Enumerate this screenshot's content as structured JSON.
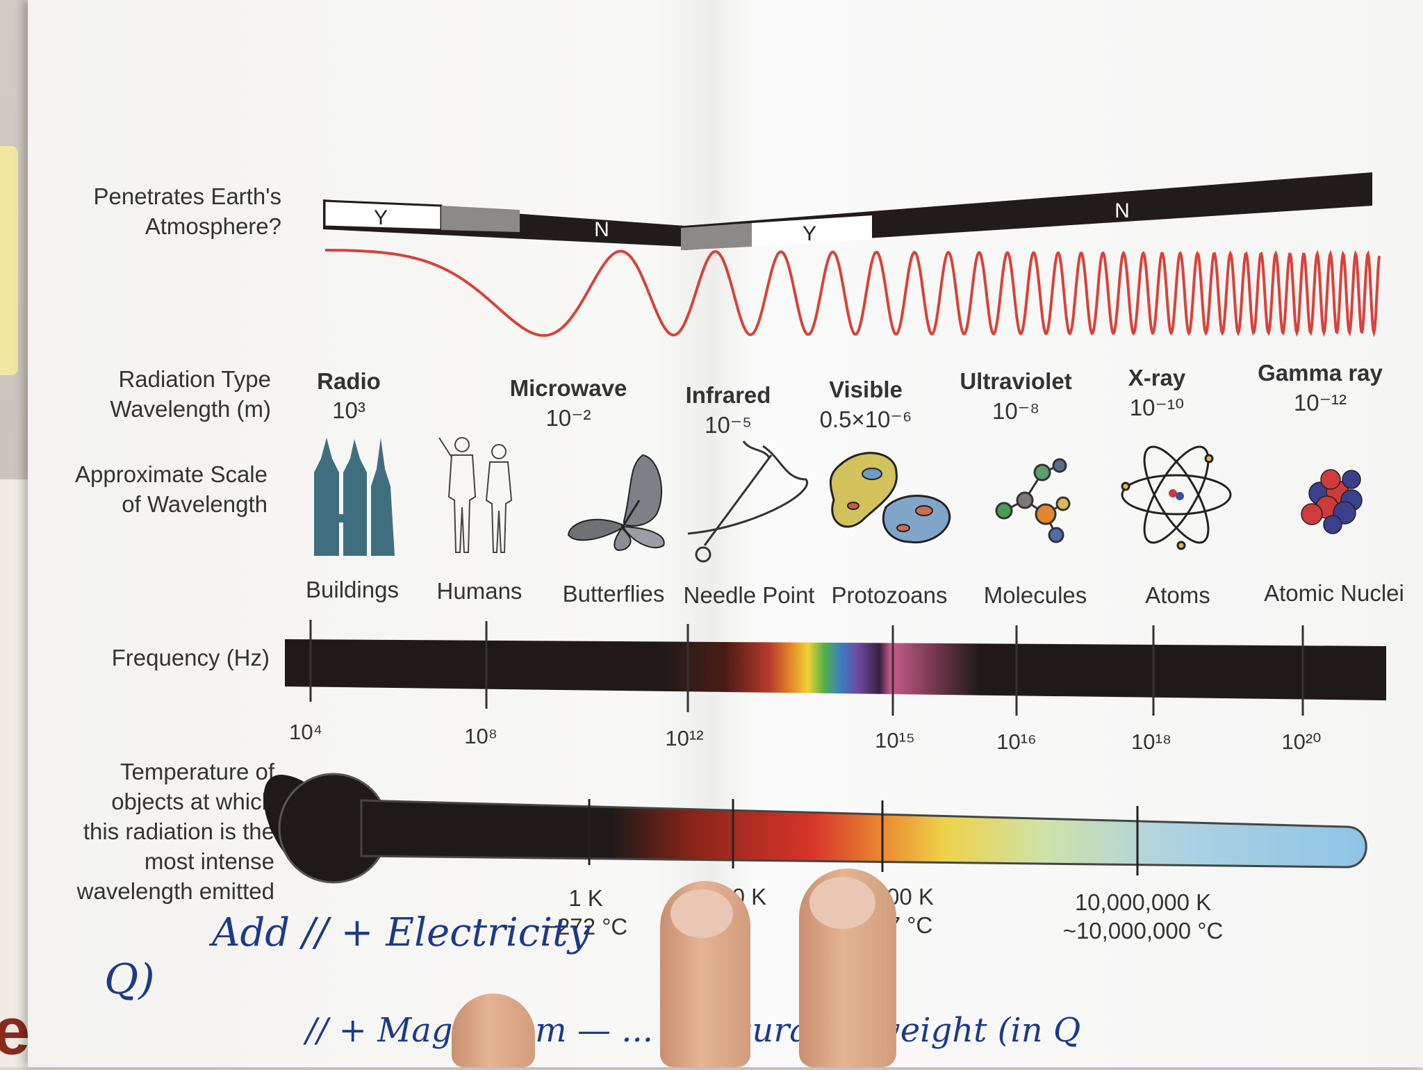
{
  "labels": {
    "penetrates": [
      "Penetrates Earth's",
      "Atmosphere?"
    ],
    "radiation_type": "Radiation Type",
    "wavelength": "Wavelength (m)",
    "scale": [
      "Approximate Scale",
      "of Wavelength"
    ],
    "frequency": "Frequency (Hz)",
    "temperature": [
      "Temperature of",
      "objects at which",
      "this radiation is the",
      "most intense",
      "wavelength emitted"
    ]
  },
  "atmosphere": {
    "y_left": "Y",
    "n_left": "N",
    "y_mid": "Y",
    "n_right": "N"
  },
  "radiation_types": [
    {
      "name": "Radio",
      "wl": "10³"
    },
    {
      "name": "Microwave",
      "wl": "10⁻²"
    },
    {
      "name": "Infrared",
      "wl": "10⁻⁵"
    },
    {
      "name": "Visible",
      "wl": "0.5×10⁻⁶"
    },
    {
      "name": "Ultraviolet",
      "wl": "10⁻⁸"
    },
    {
      "name": "X-ray",
      "wl": "10⁻¹⁰"
    },
    {
      "name": "Gamma ray",
      "wl": "10⁻¹²"
    }
  ],
  "scales": [
    "Buildings",
    "Humans",
    "Butterflies",
    "Needle Point",
    "Protozoans",
    "Molecules",
    "Atoms",
    "Atomic Nuclei"
  ],
  "frequencies": [
    "10⁴",
    "10⁸",
    "10¹²",
    "10¹⁵",
    "10¹⁶",
    "10¹⁸",
    "10²⁰"
  ],
  "temperatures": [
    {
      "k": "1 K",
      "c": "−272 °C"
    },
    {
      "k": "100 K",
      "c": "°C"
    },
    {
      "k": "00 K",
      "c": "7 °C"
    },
    {
      "k": "10,000,000 K",
      "c": "~10,000,000 °C"
    }
  ],
  "handwriting": {
    "left": "Q)",
    "line1": "Add // + Electricity",
    "line2": "// + Magnetism — ... measurable weight (in Q"
  },
  "background_text": "en"
}
